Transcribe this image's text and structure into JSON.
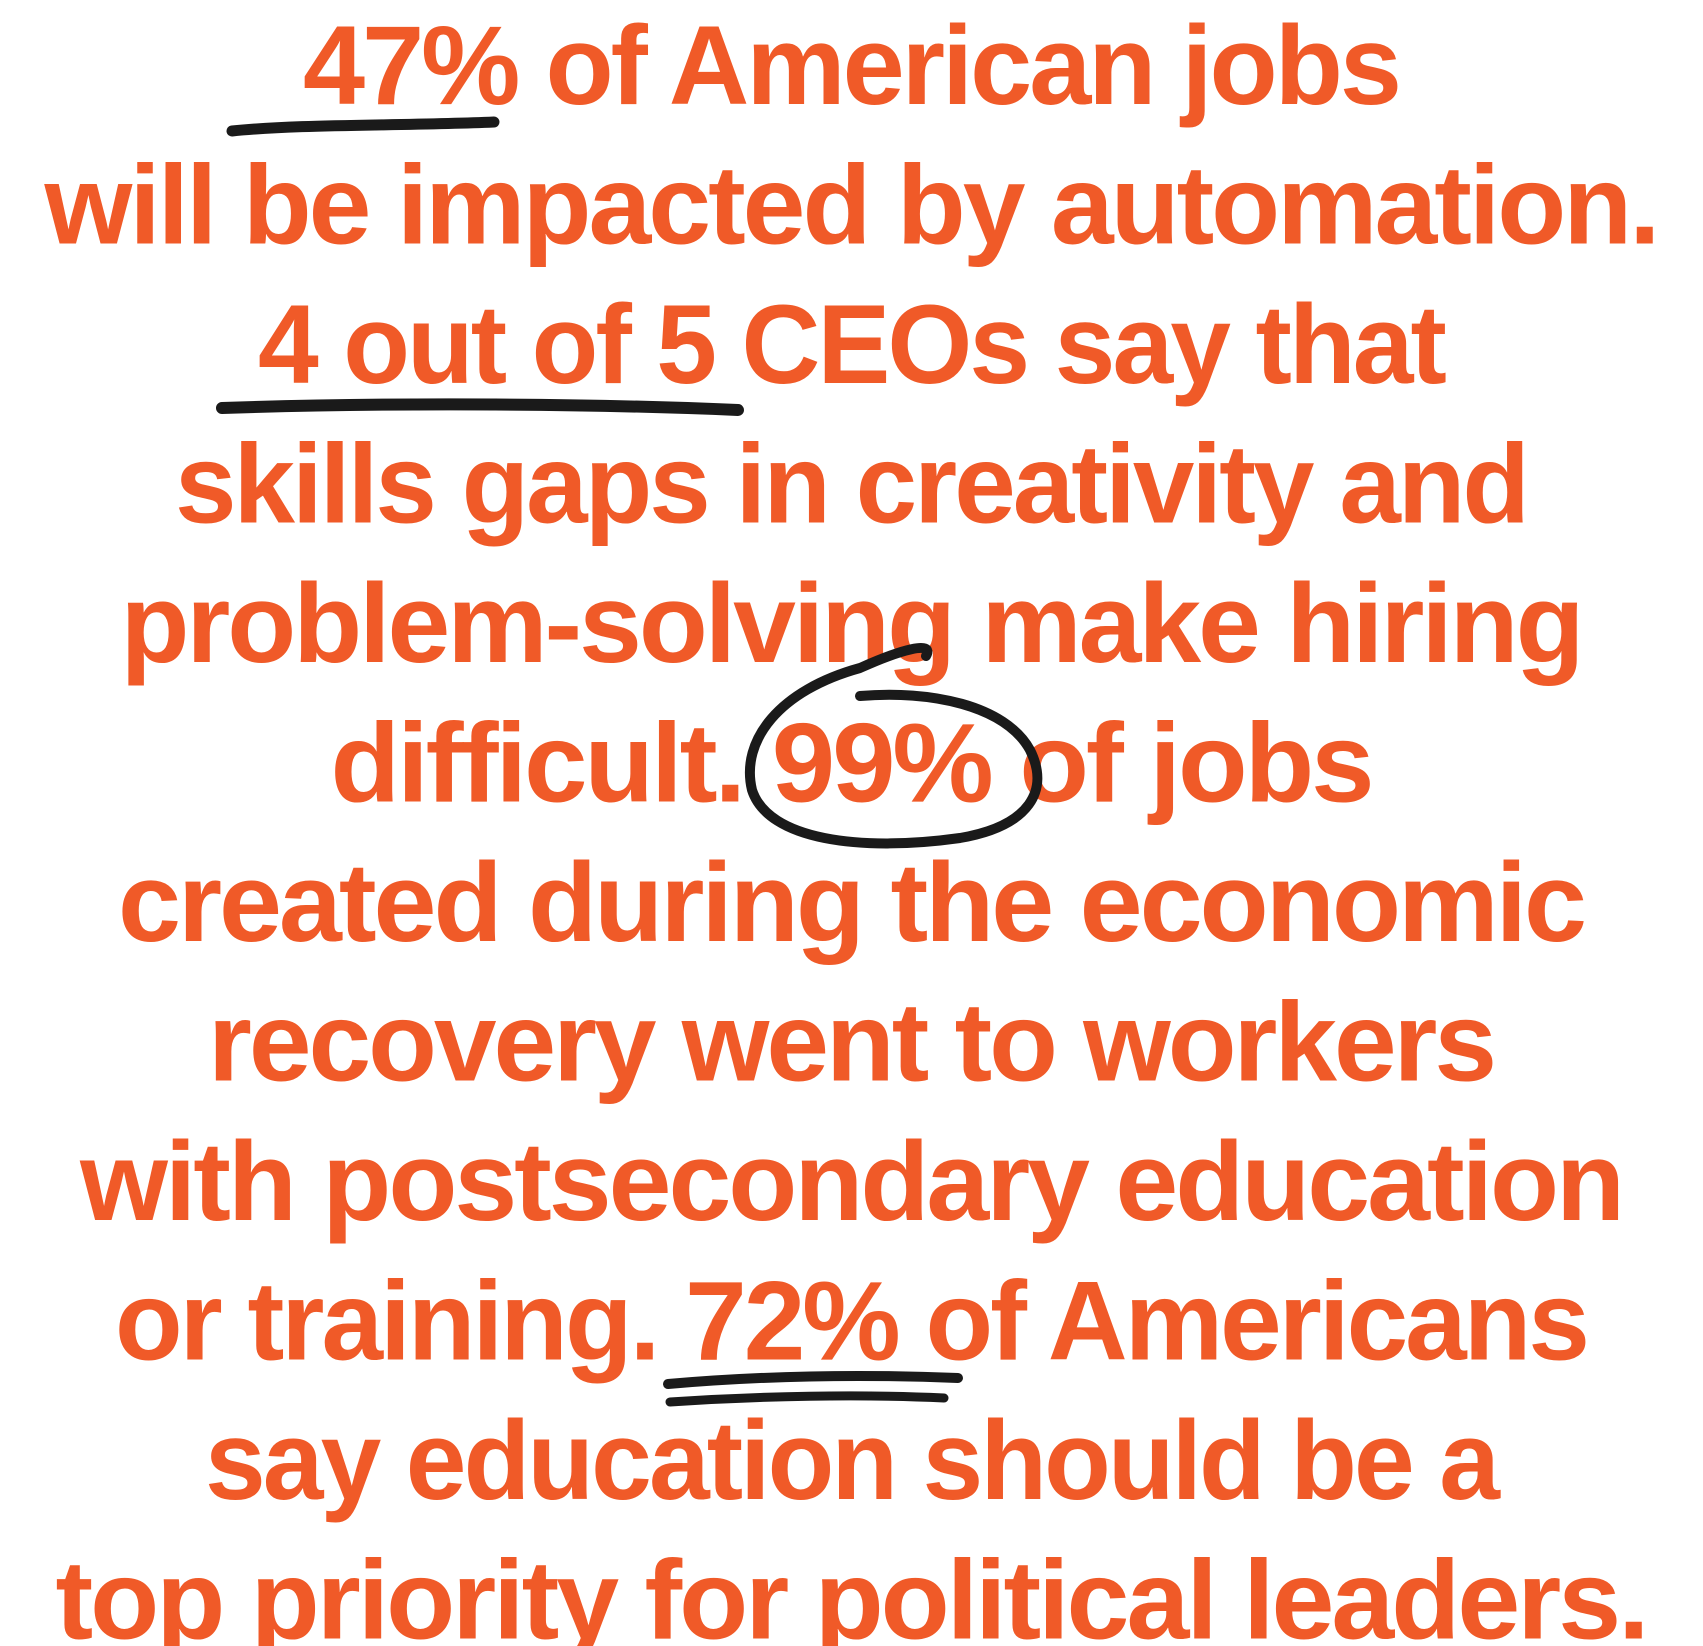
{
  "lines": [
    "47% of American jobs",
    "will be impacted by automation.",
    "4 out of 5 CEOs say that",
    "skills gaps in creativity and",
    "problem-solving make hiring",
    "difficult. 99% of jobs",
    "created during the economic",
    "recovery went to workers",
    "with postsecondary education",
    "or training. 72% of Americans",
    "say education should be a",
    "top priority for political leaders."
  ]
}
